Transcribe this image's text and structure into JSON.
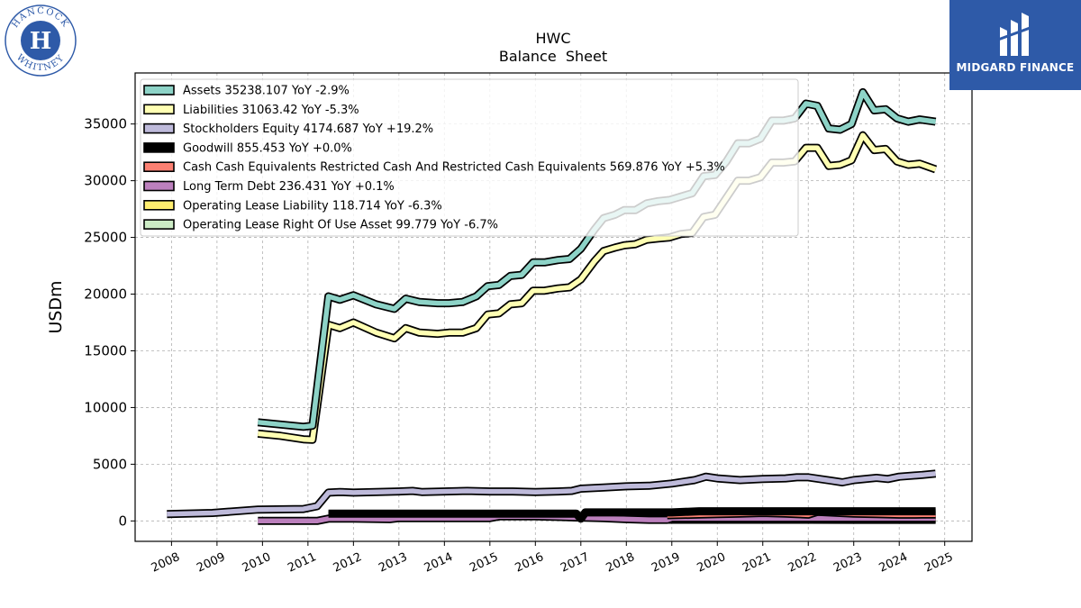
{
  "header": {
    "ticker": "HWC",
    "subtitle": "Balance  Sheet"
  },
  "logos": {
    "left_lines": [
      "HANCOCK",
      "WHITNEY"
    ],
    "left_monogram": "H",
    "right_name": "MIDGARD FINANCE"
  },
  "chart_data": {
    "type": "line",
    "ylabel": "USDm",
    "xlim": [
      2007.2,
      2025.6
    ],
    "ylim": [
      -1800,
      39500
    ],
    "yticks": [
      0,
      5000,
      10000,
      15000,
      20000,
      25000,
      30000,
      35000
    ],
    "ytick_labels": [
      "0",
      "5000",
      "10000",
      "15000",
      "20000",
      "25000",
      "30000",
      "35000"
    ],
    "xticks": [
      2008,
      2009,
      2010,
      2011,
      2012,
      2013,
      2014,
      2015,
      2016,
      2017,
      2018,
      2019,
      2020,
      2021,
      2022,
      2023,
      2024,
      2025
    ],
    "xtick_labels": [
      "2008",
      "2009",
      "2010",
      "2011",
      "2012",
      "2013",
      "2014",
      "2015",
      "2016",
      "2017",
      "2018",
      "2019",
      "2020",
      "2021",
      "2022",
      "2023",
      "2024",
      "2025"
    ],
    "grid": true,
    "legend_position": "top-left",
    "series": [
      {
        "name": "Assets",
        "legend": "Assets  35238.107 YoY -2.9%",
        "color": "#8dd3c7",
        "points": [
          [
            2009.9,
            8700
          ],
          [
            2010.4,
            8500
          ],
          [
            2010.9,
            8300
          ],
          [
            2011.1,
            8400
          ],
          [
            2011.45,
            19800
          ],
          [
            2011.7,
            19500
          ],
          [
            2012.0,
            19900
          ],
          [
            2012.5,
            19100
          ],
          [
            2012.9,
            18700
          ],
          [
            2013.15,
            19600
          ],
          [
            2013.45,
            19300
          ],
          [
            2013.85,
            19200
          ],
          [
            2014.1,
            19200
          ],
          [
            2014.4,
            19300
          ],
          [
            2014.7,
            19800
          ],
          [
            2014.95,
            20700
          ],
          [
            2015.2,
            20800
          ],
          [
            2015.45,
            21600
          ],
          [
            2015.7,
            21700
          ],
          [
            2015.95,
            22800
          ],
          [
            2016.2,
            22800
          ],
          [
            2016.5,
            23000
          ],
          [
            2016.75,
            23100
          ],
          [
            2017.0,
            24000
          ],
          [
            2017.3,
            25700
          ],
          [
            2017.5,
            26700
          ],
          [
            2017.75,
            27000
          ],
          [
            2017.95,
            27400
          ],
          [
            2018.2,
            27400
          ],
          [
            2018.45,
            28000
          ],
          [
            2018.7,
            28200
          ],
          [
            2018.95,
            28300
          ],
          [
            2019.2,
            28600
          ],
          [
            2019.45,
            28900
          ],
          [
            2019.7,
            30400
          ],
          [
            2019.95,
            30500
          ],
          [
            2020.2,
            31700
          ],
          [
            2020.45,
            33300
          ],
          [
            2020.7,
            33300
          ],
          [
            2020.95,
            33700
          ],
          [
            2021.2,
            35300
          ],
          [
            2021.45,
            35300
          ],
          [
            2021.7,
            35500
          ],
          [
            2021.95,
            36800
          ],
          [
            2022.2,
            36600
          ],
          [
            2022.45,
            34600
          ],
          [
            2022.7,
            34500
          ],
          [
            2022.95,
            35000
          ],
          [
            2023.2,
            37800
          ],
          [
            2023.45,
            36200
          ],
          [
            2023.7,
            36300
          ],
          [
            2023.95,
            35500
          ],
          [
            2024.2,
            35200
          ],
          [
            2024.45,
            35400
          ],
          [
            2024.8,
            35200
          ]
        ]
      },
      {
        "name": "Liabilities",
        "legend": "Liabilities  31063.42 YoY -5.3%",
        "color": "#ffffb3",
        "points": [
          [
            2009.9,
            7700
          ],
          [
            2010.4,
            7500
          ],
          [
            2010.9,
            7200
          ],
          [
            2011.1,
            7150
          ],
          [
            2011.45,
            17300
          ],
          [
            2011.7,
            17000
          ],
          [
            2012.0,
            17500
          ],
          [
            2012.5,
            16600
          ],
          [
            2012.9,
            16100
          ],
          [
            2013.15,
            17000
          ],
          [
            2013.45,
            16600
          ],
          [
            2013.85,
            16500
          ],
          [
            2014.1,
            16600
          ],
          [
            2014.4,
            16600
          ],
          [
            2014.7,
            17000
          ],
          [
            2014.95,
            18200
          ],
          [
            2015.2,
            18300
          ],
          [
            2015.45,
            19100
          ],
          [
            2015.7,
            19200
          ],
          [
            2015.95,
            20300
          ],
          [
            2016.2,
            20300
          ],
          [
            2016.5,
            20500
          ],
          [
            2016.75,
            20600
          ],
          [
            2017.0,
            21300
          ],
          [
            2017.3,
            22900
          ],
          [
            2017.5,
            23800
          ],
          [
            2017.75,
            24100
          ],
          [
            2017.95,
            24300
          ],
          [
            2018.2,
            24400
          ],
          [
            2018.45,
            24800
          ],
          [
            2018.7,
            24900
          ],
          [
            2018.95,
            25000
          ],
          [
            2019.2,
            25300
          ],
          [
            2019.45,
            25400
          ],
          [
            2019.7,
            26800
          ],
          [
            2019.95,
            27000
          ],
          [
            2020.2,
            28500
          ],
          [
            2020.45,
            30000
          ],
          [
            2020.7,
            30000
          ],
          [
            2020.95,
            30300
          ],
          [
            2021.2,
            31600
          ],
          [
            2021.45,
            31600
          ],
          [
            2021.7,
            31700
          ],
          [
            2021.95,
            32900
          ],
          [
            2022.2,
            32900
          ],
          [
            2022.45,
            31300
          ],
          [
            2022.7,
            31400
          ],
          [
            2022.95,
            31800
          ],
          [
            2023.2,
            34000
          ],
          [
            2023.45,
            32700
          ],
          [
            2023.7,
            32800
          ],
          [
            2023.95,
            31700
          ],
          [
            2024.2,
            31400
          ],
          [
            2024.45,
            31500
          ],
          [
            2024.8,
            31000
          ]
        ]
      },
      {
        "name": "Stockholders Equity",
        "legend": "Stockholders Equity  4174.687 YoY +19.2%",
        "color": "#bebada",
        "points": [
          [
            2007.9,
            600
          ],
          [
            2008.9,
            700
          ],
          [
            2009.9,
            1000
          ],
          [
            2010.9,
            1050
          ],
          [
            2011.2,
            1300
          ],
          [
            2011.45,
            2500
          ],
          [
            2011.7,
            2550
          ],
          [
            2012.0,
            2500
          ],
          [
            2012.5,
            2550
          ],
          [
            2013.0,
            2600
          ],
          [
            2013.3,
            2650
          ],
          [
            2013.5,
            2550
          ],
          [
            2014.0,
            2600
          ],
          [
            2014.5,
            2650
          ],
          [
            2015.0,
            2600
          ],
          [
            2015.5,
            2600
          ],
          [
            2016.0,
            2550
          ],
          [
            2016.5,
            2600
          ],
          [
            2016.8,
            2650
          ],
          [
            2017.0,
            2850
          ],
          [
            2017.5,
            2950
          ],
          [
            2018.0,
            3050
          ],
          [
            2018.5,
            3100
          ],
          [
            2019.0,
            3300
          ],
          [
            2019.5,
            3600
          ],
          [
            2019.75,
            3900
          ],
          [
            2020.0,
            3750
          ],
          [
            2020.5,
            3600
          ],
          [
            2021.0,
            3700
          ],
          [
            2021.5,
            3750
          ],
          [
            2021.75,
            3850
          ],
          [
            2022.0,
            3850
          ],
          [
            2022.5,
            3550
          ],
          [
            2022.75,
            3400
          ],
          [
            2023.0,
            3600
          ],
          [
            2023.5,
            3800
          ],
          [
            2023.75,
            3700
          ],
          [
            2024.0,
            3900
          ],
          [
            2024.5,
            4050
          ],
          [
            2024.8,
            4170
          ]
        ]
      },
      {
        "name": "Goodwill",
        "legend": "Goodwill  855.453 YoY +0.0%",
        "color": "#000000",
        "points": [
          [
            2011.45,
            650
          ],
          [
            2012.0,
            650
          ],
          [
            2013.0,
            650
          ],
          [
            2014.0,
            650
          ],
          [
            2015.0,
            650
          ],
          [
            2016.0,
            650
          ],
          [
            2016.9,
            650
          ],
          [
            2017.0,
            200
          ],
          [
            2017.1,
            750
          ],
          [
            2017.5,
            750
          ],
          [
            2018.0,
            750
          ],
          [
            2019.0,
            750
          ],
          [
            2019.6,
            850
          ],
          [
            2020.0,
            855
          ],
          [
            2021.0,
            855
          ],
          [
            2022.0,
            855
          ],
          [
            2023.0,
            855
          ],
          [
            2024.0,
            855
          ],
          [
            2024.8,
            855
          ]
        ]
      },
      {
        "name": "Cash Cash Equivalents Restricted Cash And Restricted Cash Equivalents",
        "legend": "Cash Cash Equivalents Restricted Cash And Restricted Cash Equivalents  569.876 YoY +5.3%",
        "color": "#fb8072",
        "points": [
          [
            2018.9,
            500
          ],
          [
            2019.5,
            550
          ],
          [
            2020.0,
            600
          ],
          [
            2020.5,
            650
          ],
          [
            2021.0,
            700
          ],
          [
            2021.5,
            650
          ],
          [
            2022.0,
            550
          ],
          [
            2022.2,
            800
          ],
          [
            2022.7,
            700
          ],
          [
            2023.0,
            650
          ],
          [
            2023.5,
            600
          ],
          [
            2024.0,
            550
          ],
          [
            2024.5,
            560
          ],
          [
            2024.8,
            570
          ]
        ]
      },
      {
        "name": "Long Term Debt",
        "legend": "Long Term Debt  236.431 YoY +0.1%",
        "color": "#bc80bd",
        "points": [
          [
            2009.9,
            0
          ],
          [
            2010.5,
            0
          ],
          [
            2011.2,
            0
          ],
          [
            2011.45,
            200
          ],
          [
            2012.0,
            200
          ],
          [
            2012.8,
            150
          ],
          [
            2013.0,
            250
          ],
          [
            2014.0,
            250
          ],
          [
            2014.5,
            250
          ],
          [
            2015.0,
            250
          ],
          [
            2015.2,
            400
          ],
          [
            2016.0,
            400
          ],
          [
            2016.5,
            350
          ],
          [
            2017.0,
            300
          ],
          [
            2017.5,
            250
          ],
          [
            2018.0,
            150
          ],
          [
            2018.5,
            100
          ],
          [
            2018.9,
            100
          ],
          [
            2019.0,
            236
          ],
          [
            2020.0,
            236
          ],
          [
            2021.0,
            236
          ],
          [
            2022.0,
            236
          ],
          [
            2023.0,
            236
          ],
          [
            2024.0,
            236
          ],
          [
            2024.8,
            236
          ]
        ]
      },
      {
        "name": "Operating Lease Liability",
        "legend": "Operating Lease Liability  118.714 YoY -6.3%",
        "color": "#ffed6f",
        "points": [
          [
            2018.9,
            130
          ],
          [
            2020.0,
            130
          ],
          [
            2021.0,
            130
          ],
          [
            2022.0,
            125
          ],
          [
            2023.0,
            122
          ],
          [
            2024.0,
            120
          ],
          [
            2024.8,
            119
          ]
        ]
      },
      {
        "name": "Operating Lease Right Of Use Asset",
        "legend": "Operating Lease Right Of Use Asset  99.779 YoY -6.7%",
        "color": "#ccebc5",
        "points": [
          [
            2018.9,
            110
          ],
          [
            2020.0,
            110
          ],
          [
            2021.0,
            108
          ],
          [
            2022.0,
            105
          ],
          [
            2023.0,
            102
          ],
          [
            2024.0,
            100
          ],
          [
            2024.8,
            100
          ]
        ]
      }
    ]
  }
}
